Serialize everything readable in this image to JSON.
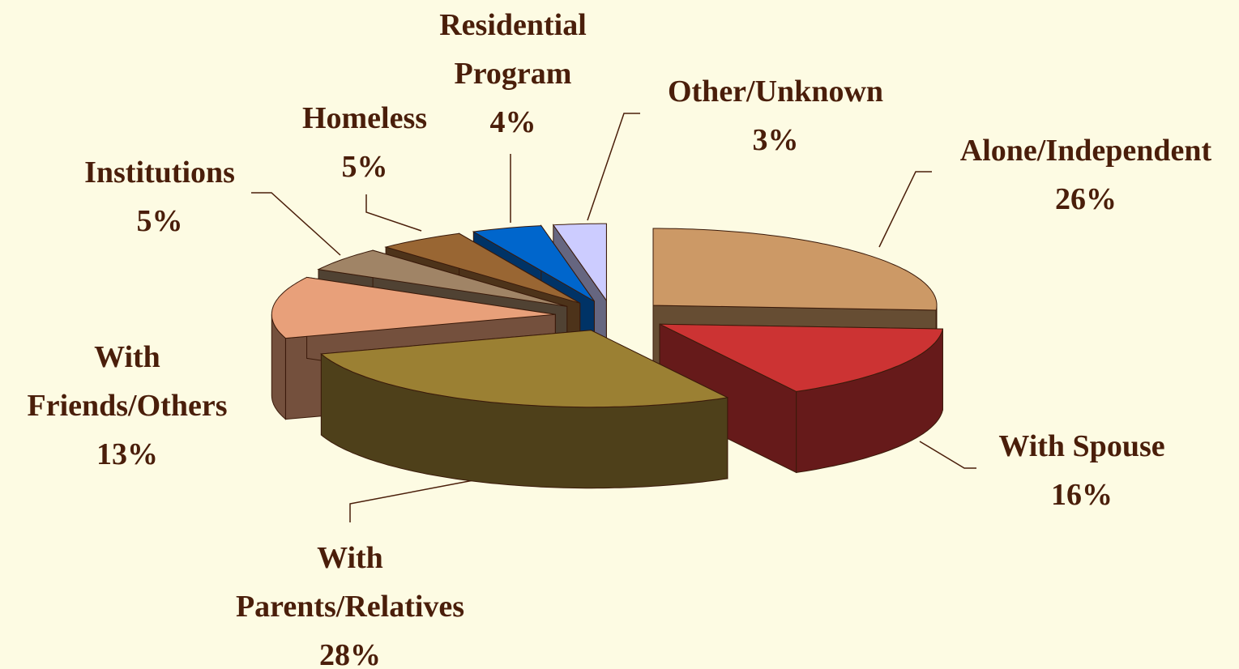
{
  "chart_data": {
    "type": "pie",
    "categories": [
      "Alone/Independent",
      "With Spouse",
      "With Parents/Relatives",
      "With Friends/Others",
      "Institutions",
      "Homeless",
      "Residential Program",
      "Other/Unknown"
    ],
    "values": [
      26,
      16,
      28,
      13,
      5,
      5,
      4,
      3
    ],
    "value_labels": [
      "26%",
      "16%",
      "28%",
      "13%",
      "5%",
      "5%",
      "4%",
      "3%"
    ],
    "colors": [
      "#cc9966",
      "#cc3333",
      "#9b8033",
      "#e8a07a",
      "#a08466",
      "#996633",
      "#0066cc",
      "#ccccff"
    ]
  }
}
